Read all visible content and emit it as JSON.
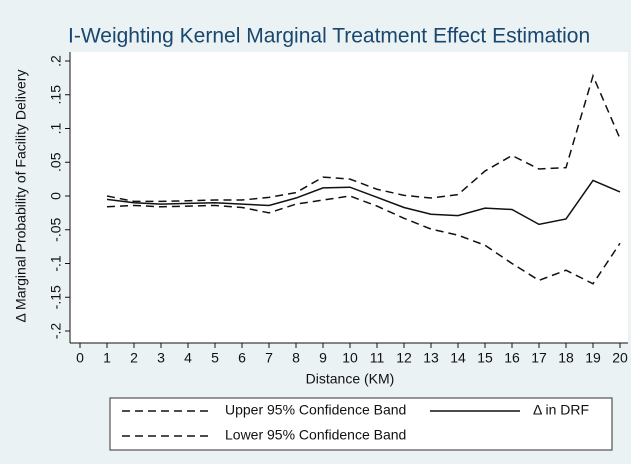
{
  "chart_data": {
    "type": "line",
    "title": "I-Weighting Kernel Marginal Treatment Effect Estimation",
    "x_label": "Distance (KM)",
    "y_label": "Δ Marginal Probability of Facility Delivery",
    "x": [
      1,
      2,
      3,
      4,
      5,
      6,
      7,
      8,
      9,
      10,
      11,
      12,
      13,
      14,
      15,
      16,
      17,
      18,
      19,
      20
    ],
    "series": [
      {
        "name": "Upper 95% Confidence Band",
        "color": "#111111",
        "dash": "dashed",
        "values": [
          0.0,
          -0.008,
          -0.008,
          -0.007,
          -0.006,
          -0.006,
          -0.002,
          0.005,
          0.028,
          0.025,
          0.01,
          0.001,
          -0.003,
          0.002,
          0.037,
          0.06,
          0.04,
          0.042,
          0.178,
          0.085
        ]
      },
      {
        "name": "Lower 95% Confidence Band",
        "color": "#111111",
        "dash": "dashed",
        "values": [
          -0.016,
          -0.014,
          -0.016,
          -0.015,
          -0.014,
          -0.017,
          -0.025,
          -0.012,
          -0.006,
          0.0,
          -0.015,
          -0.033,
          -0.049,
          -0.058,
          -0.073,
          -0.1,
          -0.125,
          -0.11,
          -0.13,
          -0.07
        ]
      },
      {
        "name": "Δ in DRF",
        "color": "#111111",
        "dash": "solid",
        "values": [
          -0.005,
          -0.01,
          -0.012,
          -0.011,
          -0.01,
          -0.012,
          -0.014,
          -0.003,
          0.012,
          0.013,
          -0.002,
          -0.017,
          -0.027,
          -0.029,
          -0.018,
          -0.02,
          -0.042,
          -0.034,
          0.023,
          0.006
        ]
      }
    ],
    "xlim": [
      0,
      20
    ],
    "xticks": [
      0,
      1,
      2,
      3,
      4,
      5,
      6,
      7,
      8,
      9,
      10,
      11,
      12,
      13,
      14,
      15,
      16,
      17,
      18,
      19,
      20
    ],
    "ylim": [
      -0.2,
      0.2
    ],
    "yticks": [
      {
        "value": 0.2,
        "label": ".2"
      },
      {
        "value": 0.15,
        "label": ".15"
      },
      {
        "value": 0.1,
        "label": ".1"
      },
      {
        "value": 0.05,
        "label": ".05"
      },
      0,
      {
        "value": -0.05,
        "label": "-.05"
      },
      {
        "value": -0.1,
        "label": "-.1"
      },
      {
        "value": -0.15,
        "label": "-.15"
      },
      {
        "value": -0.2,
        "label": "-.2"
      }
    ],
    "grid": false,
    "legend": "bottom"
  }
}
